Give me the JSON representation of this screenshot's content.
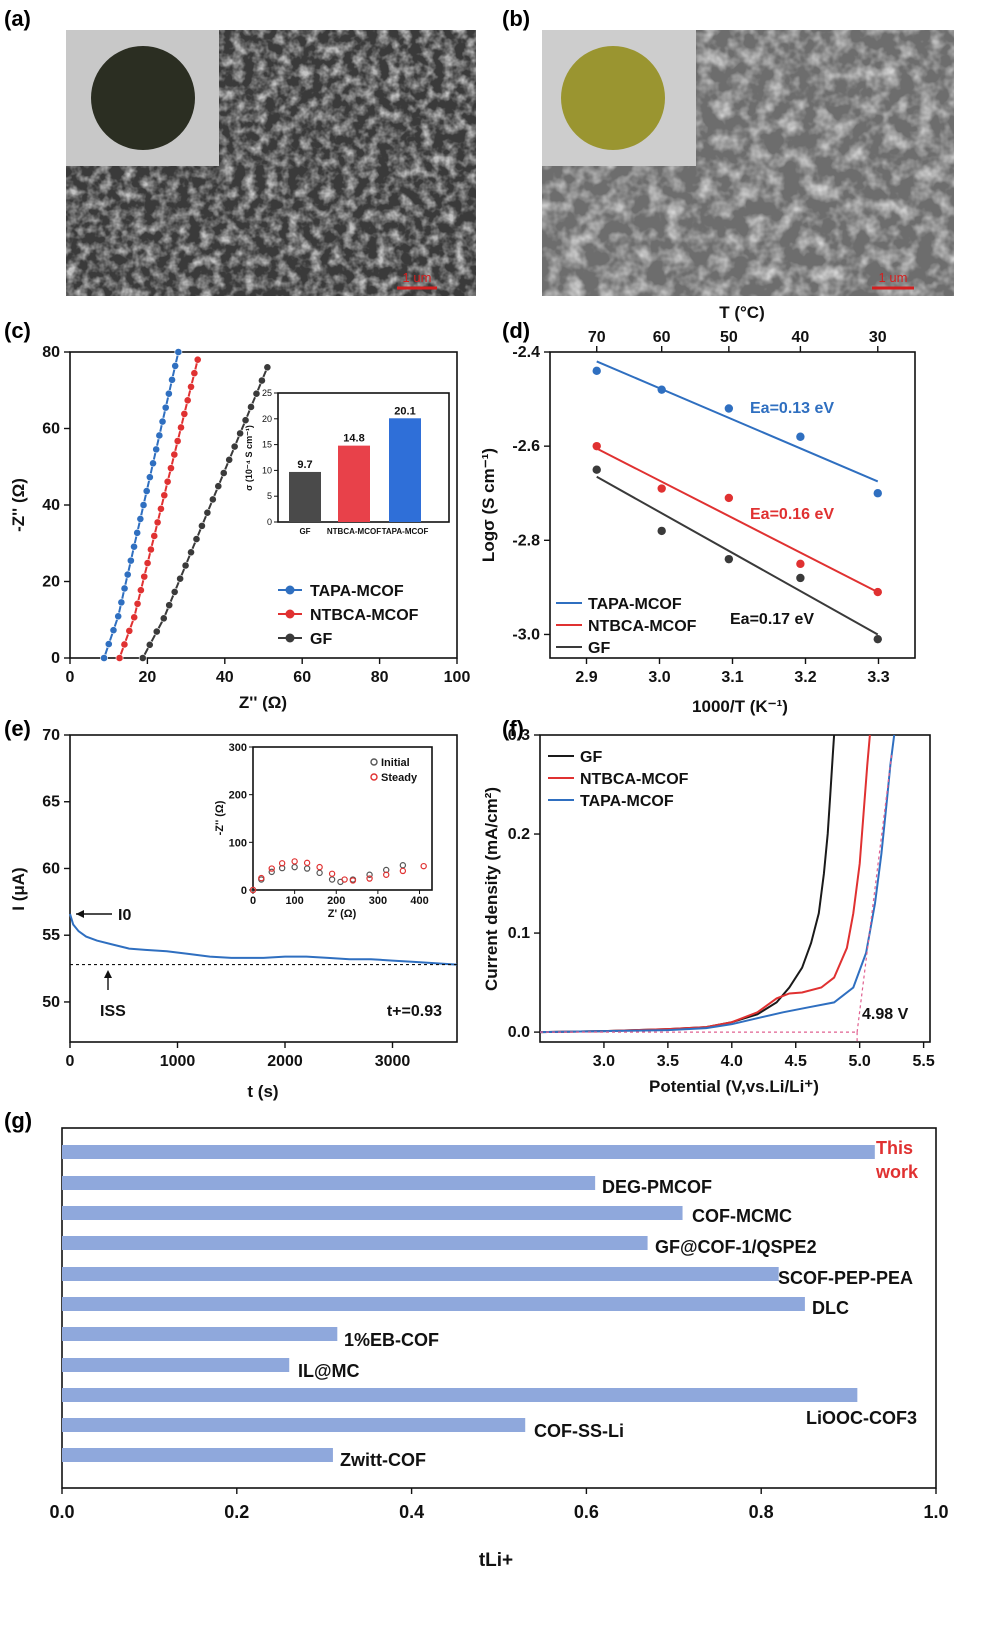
{
  "panel_labels": [
    "(a)",
    "(b)",
    "(c)",
    "(d)",
    "(e)",
    "(f)",
    "(g)"
  ],
  "sem": {
    "a": {
      "scale_text": "1 um",
      "inset_disc_color": "#2b2e22"
    },
    "b": {
      "scale_text": "1 um",
      "inset_disc_color": "#9a9530"
    }
  },
  "chart_data": [
    {
      "panel": "c",
      "type": "scatter",
      "xlabel": "Z'' (Ω)",
      "ylabel": "-Z'' (Ω)",
      "xlim": [
        0,
        100
      ],
      "ylim": [
        0,
        80
      ],
      "xticks": [
        "0",
        "20",
        "40",
        "60",
        "80",
        "100"
      ],
      "yticks": [
        "0",
        "20",
        "40",
        "60",
        "80"
      ],
      "series": [
        {
          "name": "TAPA-MCOF",
          "color": "#2f6fc0",
          "x0": 10,
          "x1": 28,
          "yend": 80
        },
        {
          "name": "NTBCA-MCOF",
          "color": "#e03131",
          "x0": 14,
          "x1": 33,
          "yend": 78
        },
        {
          "name": "GF",
          "color": "#3a3a3a",
          "x0": 20,
          "x1": 51,
          "yend": 76
        }
      ],
      "legend": [
        "TAPA-MCOF",
        "NTBCA-MCOF",
        "GF"
      ],
      "inset": {
        "type": "bar",
        "ylabel": "σ (10⁻⁴ S cm⁻¹)",
        "categories": [
          "GF",
          "NTBCA-MCOF",
          "TAPA-MCOF"
        ],
        "values": [
          9.7,
          14.8,
          20.1
        ],
        "value_labels": [
          "9.7",
          "14.8",
          "20.1"
        ],
        "colors": [
          "#4a4a4a",
          "#e8414a",
          "#2f6fd8"
        ],
        "ylim": [
          0,
          25
        ],
        "yticks": [
          "0",
          "5",
          "10",
          "15",
          "20",
          "25"
        ]
      }
    },
    {
      "panel": "d",
      "type": "scatter",
      "xlabel": "1000/T (K⁻¹)",
      "ylabel": "Logσ (S cm⁻¹)",
      "top_xlabel": "T (°C)",
      "top_ticks": [
        "70",
        "60",
        "50",
        "40",
        "30"
      ],
      "xlim": [
        2.85,
        3.35
      ],
      "ylim": [
        -3.05,
        -2.4
      ],
      "xticks": [
        "2.9",
        "3.0",
        "3.1",
        "3.2",
        "3.3"
      ],
      "yticks": [
        "-2.4",
        "-2.6",
        "-2.8",
        "-3.0"
      ],
      "x": [
        2.914,
        3.003,
        3.095,
        3.193,
        3.299
      ],
      "series": [
        {
          "name": "TAPA-MCOF",
          "color": "#2f6fc0",
          "y": [
            -2.44,
            -2.48,
            -2.52,
            -2.58,
            -2.7
          ],
          "fit": [
            -2.42,
            -2.675
          ],
          "annotation": "Ea=0.13 eV"
        },
        {
          "name": "NTBCA-MCOF",
          "color": "#e03131",
          "y": [
            -2.6,
            -2.69,
            -2.71,
            -2.85,
            -2.91
          ],
          "fit": [
            -2.605,
            -2.91
          ],
          "annotation": "Ea=0.16 eV"
        },
        {
          "name": "GF",
          "color": "#3a3a3a",
          "y": [
            -2.65,
            -2.78,
            -2.84,
            -2.88,
            -3.01
          ],
          "fit": [
            -2.665,
            -3.0
          ],
          "annotation": "Ea=0.17 eV"
        }
      ],
      "legend": [
        "TAPA-MCOF",
        "NTBCA-MCOF",
        "GF"
      ]
    },
    {
      "panel": "e",
      "type": "line",
      "xlabel": "t (s)",
      "ylabel": "I (μA)",
      "xlim": [
        0,
        3600
      ],
      "ylim": [
        47,
        70
      ],
      "xticks": [
        "0",
        "1000",
        "2000",
        "3000"
      ],
      "yticks": [
        "50",
        "55",
        "60",
        "65",
        "70"
      ],
      "series": [
        {
          "name": "",
          "color": "#2f6fc0",
          "x": [
            0,
            30,
            80,
            150,
            250,
            400,
            550,
            700,
            900,
            1100,
            1300,
            1500,
            1800,
            2000,
            2200,
            2400,
            2600,
            2800,
            3000,
            3200,
            3400,
            3600
          ],
          "y": [
            56.6,
            55.8,
            55.3,
            54.9,
            54.6,
            54.3,
            54.0,
            53.9,
            53.8,
            53.6,
            53.4,
            53.3,
            53.3,
            53.4,
            53.4,
            53.3,
            53.2,
            53.2,
            53.1,
            53.0,
            52.9,
            52.8
          ]
        }
      ],
      "ss_line": 52.8,
      "labels": {
        "i0": "I0",
        "iss": "ISS",
        "tplus": "t+=0.93"
      },
      "inset": {
        "type": "scatter",
        "xlabel": "Z' (Ω)",
        "ylabel": "-Z'' (Ω)",
        "xlim": [
          0,
          430
        ],
        "ylim": [
          0,
          300
        ],
        "xticks": [
          "0",
          "100",
          "200",
          "300",
          "400"
        ],
        "yticks": [
          "0",
          "100",
          "200",
          "300"
        ],
        "series": [
          {
            "name": "Initial",
            "color": "#555555",
            "x": [
              0,
              20,
              45,
              70,
              100,
              130,
              160,
              190,
              210,
              240,
              280,
              320,
              360
            ],
            "y": [
              0,
              22,
              38,
              46,
              48,
              45,
              36,
              22,
              17,
              22,
              32,
              42,
              52
            ]
          },
          {
            "name": "Steady",
            "color": "#e03131",
            "x": [
              0,
              20,
              45,
              70,
              100,
              130,
              160,
              190,
              220,
              240,
              280,
              320,
              360,
              410
            ],
            "y": [
              0,
              25,
              45,
              56,
              60,
              57,
              48,
              34,
              22,
              20,
              24,
              32,
              40,
              50
            ]
          }
        ]
      }
    },
    {
      "panel": "f",
      "type": "line",
      "xlabel": "Potential (V,vs.Li/Li⁺)",
      "ylabel": "Current density (mA/cm²)",
      "xlim": [
        2.5,
        5.55
      ],
      "ylim": [
        -0.01,
        0.3
      ],
      "xticks": [
        "3.0",
        "3.5",
        "4.0",
        "4.5",
        "5.0",
        "5.5"
      ],
      "yticks": [
        "0.0",
        "0.1",
        "0.2",
        "0.3"
      ],
      "series": [
        {
          "name": "GF",
          "color": "#1a1a1a",
          "x": [
            2.5,
            3.0,
            3.5,
            3.8,
            4.0,
            4.2,
            4.35,
            4.45,
            4.55,
            4.62,
            4.68,
            4.72,
            4.75,
            4.77,
            4.79,
            4.8
          ],
          "y": [
            0.0,
            0.001,
            0.003,
            0.005,
            0.01,
            0.018,
            0.03,
            0.045,
            0.065,
            0.09,
            0.12,
            0.16,
            0.2,
            0.24,
            0.28,
            0.3
          ]
        },
        {
          "name": "NTBCA-MCOF",
          "color": "#e03131",
          "x": [
            2.5,
            3.0,
            3.5,
            3.8,
            4.0,
            4.2,
            4.35,
            4.45,
            4.55,
            4.7,
            4.8,
            4.9,
            4.95,
            5.0,
            5.03,
            5.06,
            5.08
          ],
          "y": [
            0.0,
            0.001,
            0.003,
            0.005,
            0.01,
            0.02,
            0.034,
            0.039,
            0.04,
            0.045,
            0.055,
            0.085,
            0.12,
            0.17,
            0.22,
            0.27,
            0.3
          ]
        },
        {
          "name": "TAPA-MCOF",
          "color": "#2f6fc0",
          "x": [
            2.5,
            3.0,
            3.5,
            3.8,
            4.0,
            4.2,
            4.4,
            4.6,
            4.8,
            4.95,
            5.05,
            5.12,
            5.17,
            5.21,
            5.24,
            5.27
          ],
          "y": [
            0.0,
            0.001,
            0.002,
            0.004,
            0.008,
            0.014,
            0.02,
            0.025,
            0.03,
            0.045,
            0.08,
            0.13,
            0.18,
            0.23,
            0.27,
            0.3
          ]
        }
      ],
      "annotation": "4.98 V",
      "onset": 4.98,
      "legend": [
        "GF",
        "NTBCA-MCOF",
        "TAPA-MCOF"
      ]
    },
    {
      "panel": "g",
      "type": "bar",
      "orientation": "horizontal",
      "xlabel": "tLi+",
      "xlim": [
        0,
        1.0
      ],
      "xticks": [
        "0.0",
        "0.2",
        "0.4",
        "0.6",
        "0.8",
        "1.0"
      ],
      "categories": [
        "This work",
        "DEG-PMCOF",
        "COF-MCMC",
        "GF@COF-1/QSPE2",
        "SCOF-PEP-PEA",
        "DLC",
        "1%EB-COF",
        "IL@MC",
        "LiOOC-COF3",
        "COF-SS-Li",
        "Zwitt-COF"
      ],
      "values": [
        0.93,
        0.61,
        0.71,
        0.67,
        0.82,
        0.85,
        0.315,
        0.26,
        0.91,
        0.53,
        0.31
      ],
      "bar_color": "#8fa8dc",
      "highlight_color": "#e03131"
    }
  ]
}
